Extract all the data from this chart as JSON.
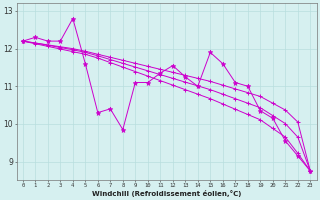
{
  "xlabel": "Windchill (Refroidissement éolien,°C)",
  "background_color": "#d6f0f0",
  "line_color": "#cc00cc",
  "grid_color": "#b8dede",
  "hours": [
    0,
    1,
    2,
    3,
    4,
    5,
    6,
    7,
    8,
    9,
    10,
    11,
    12,
    13,
    14,
    15,
    16,
    17,
    18,
    19,
    20,
    21,
    22,
    23
  ],
  "actual_data": [
    12.2,
    12.3,
    12.2,
    12.2,
    12.8,
    11.6,
    10.3,
    10.4,
    9.85,
    11.1,
    11.1,
    11.35,
    11.55,
    11.25,
    11.0,
    11.9,
    11.6,
    11.1,
    11.0,
    10.35,
    10.15,
    9.55,
    9.15,
    8.75
  ],
  "trend1": [
    12.2,
    12.15,
    12.1,
    12.05,
    12.0,
    11.93,
    11.85,
    11.77,
    11.69,
    11.61,
    11.53,
    11.45,
    11.37,
    11.29,
    11.21,
    11.13,
    11.03,
    10.93,
    10.83,
    10.73,
    10.55,
    10.37,
    10.05,
    8.75
  ],
  "trend2": [
    12.2,
    12.15,
    12.09,
    12.03,
    11.97,
    11.9,
    11.81,
    11.71,
    11.61,
    11.51,
    11.41,
    11.31,
    11.21,
    11.11,
    11.01,
    10.91,
    10.79,
    10.67,
    10.55,
    10.43,
    10.22,
    10.01,
    9.65,
    8.75
  ],
  "trend3": [
    12.2,
    12.13,
    12.06,
    11.99,
    11.92,
    11.85,
    11.75,
    11.63,
    11.51,
    11.39,
    11.27,
    11.15,
    11.03,
    10.91,
    10.79,
    10.67,
    10.53,
    10.39,
    10.25,
    10.11,
    9.88,
    9.65,
    9.22,
    8.75
  ],
  "ylim": [
    8.5,
    13.2
  ],
  "yticks": [
    9,
    10,
    11,
    12,
    13
  ],
  "xlim": [
    -0.5,
    23.5
  ],
  "figwidth": 3.2,
  "figheight": 2.0,
  "dpi": 100
}
